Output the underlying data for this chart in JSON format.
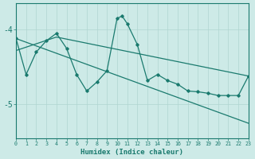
{
  "xlabel": "Humidex (Indice chaleur)",
  "bg_color": "#cdeae7",
  "line_color": "#1a7a6e",
  "grid_color": "#b0d5d1",
  "xlim": [
    0,
    23
  ],
  "ylim": [
    -5.45,
    -3.65
  ],
  "yticks": [
    -5,
    -4
  ],
  "xticks": [
    0,
    1,
    2,
    3,
    4,
    5,
    6,
    7,
    8,
    9,
    10,
    11,
    12,
    13,
    14,
    15,
    16,
    17,
    18,
    19,
    20,
    21,
    22,
    23
  ],
  "line1_x": [
    0,
    23
  ],
  "line1_y": [
    -4.12,
    -5.25
  ],
  "line2_x": [
    0,
    4,
    23
  ],
  "line2_y": [
    -4.28,
    -4.1,
    -4.62
  ],
  "zigzag_x": [
    0,
    1,
    2,
    3,
    4,
    5,
    6,
    7,
    8,
    9,
    10,
    10.5,
    11,
    12,
    13,
    14,
    15,
    16,
    17,
    18,
    19,
    20,
    21,
    22,
    23
  ],
  "zigzag_y": [
    -4.12,
    -4.6,
    -4.3,
    -4.15,
    -4.05,
    -4.25,
    -4.6,
    -4.82,
    -4.7,
    -4.55,
    -3.85,
    -3.82,
    -3.92,
    -4.2,
    -4.68,
    -4.6,
    -4.68,
    -4.73,
    -4.82,
    -4.83,
    -4.85,
    -4.88,
    -4.88,
    -4.88,
    -4.62
  ]
}
